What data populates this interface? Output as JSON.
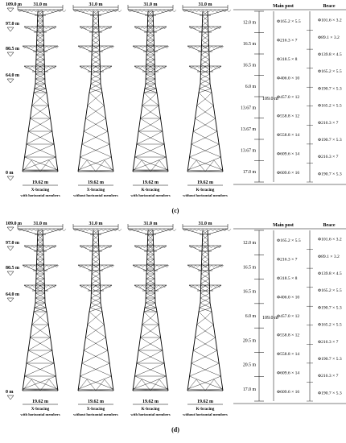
{
  "panels": [
    {
      "caption": "(c)",
      "top_width": "31.0 m",
      "base_width": "19.62 m",
      "elevations": [
        "109.0 m",
        "97.0 m",
        "80.5 m",
        "64.0 m",
        "0 m"
      ],
      "towers": [
        {
          "name": "X-bracing",
          "sub": "with horizontal members",
          "brace": "X",
          "horizontal": true
        },
        {
          "name": "X-bracing",
          "sub": "without horizontal members",
          "brace": "X",
          "horizontal": false
        },
        {
          "name": "K-bracing",
          "sub": "with horizontal members",
          "brace": "K",
          "horizontal": true
        },
        {
          "name": "K-bracing",
          "sub": "without horizontal members",
          "brace": "K",
          "horizontal": false
        }
      ],
      "table": {
        "col_main": "Main post",
        "col_brace": "Brace",
        "total_height": "109.0 m",
        "segments": [
          "12.0 m",
          "16.5 m",
          "16.5 m",
          "6.0 m",
          "13.67 m",
          "13.67 m",
          "13.67 m",
          "17.0 m"
        ],
        "main_post": [
          "Φ165.2 × 5.5",
          "Φ216.3 × 7",
          "Φ318.5 × 8",
          "Φ406.0 × 10",
          "Φ457.0 × 12",
          "Φ558.8 × 12",
          "Φ558.8 × 14",
          "Φ609.6 × 14",
          "Φ609.6 × 16"
        ],
        "brace": [
          "Φ101.6 × 3.2",
          "Φ89.1 × 3.2",
          "Φ139.8 × 4.5",
          "Φ165.2 × 5.5",
          "Φ190.7 × 5.3",
          "Φ165.2 × 5.5",
          "Φ216.3 × 7",
          "Φ190.7 × 5.3",
          "Φ216.3 × 7",
          "Φ190.7 × 5.3"
        ]
      }
    },
    {
      "caption": "(d)",
      "top_width": "31.0 m",
      "base_width": "19.62 m",
      "elevations": [
        "109.0 m",
        "97.0 m",
        "80.5 m",
        "64.0 m",
        "0 m"
      ],
      "towers": [
        {
          "name": "X-bracing",
          "sub": "with horizontal members",
          "brace": "X",
          "horizontal": true
        },
        {
          "name": "X-bracing",
          "sub": "without horizontal members",
          "brace": "X",
          "horizontal": false
        },
        {
          "name": "K-bracing",
          "sub": "with horizontal members",
          "brace": "K",
          "horizontal": true
        },
        {
          "name": "K-bracing",
          "sub": "without horizontal members",
          "brace": "K",
          "horizontal": false
        }
      ],
      "table": {
        "col_main": "Main post",
        "col_brace": "Brace",
        "total_height": "109.0 m",
        "segments": [
          "12.0 m",
          "16.5 m",
          "16.5 m",
          "6.0 m",
          "20.5 m",
          "20.5 m",
          "17.0 m"
        ],
        "main_post": [
          "Φ165.2 × 5.5",
          "Φ216.3 × 7",
          "Φ318.5 × 8",
          "Φ406.0 × 10",
          "Φ457.0 × 12",
          "Φ558.8 × 12",
          "Φ558.8 × 14",
          "Φ609.6 × 14",
          "Φ609.6 × 16"
        ],
        "brace": [
          "Φ101.6 × 3.2",
          "Φ89.1 × 3.2",
          "Φ139.8 × 4.5",
          "Φ165.2 × 5.5",
          "Φ190.7 × 5.3",
          "Φ165.2 × 5.5",
          "Φ216.3 × 7",
          "Φ190.7 × 5.3",
          "Φ216.3 × 7",
          "Φ190.7 × 5.3"
        ]
      }
    }
  ]
}
